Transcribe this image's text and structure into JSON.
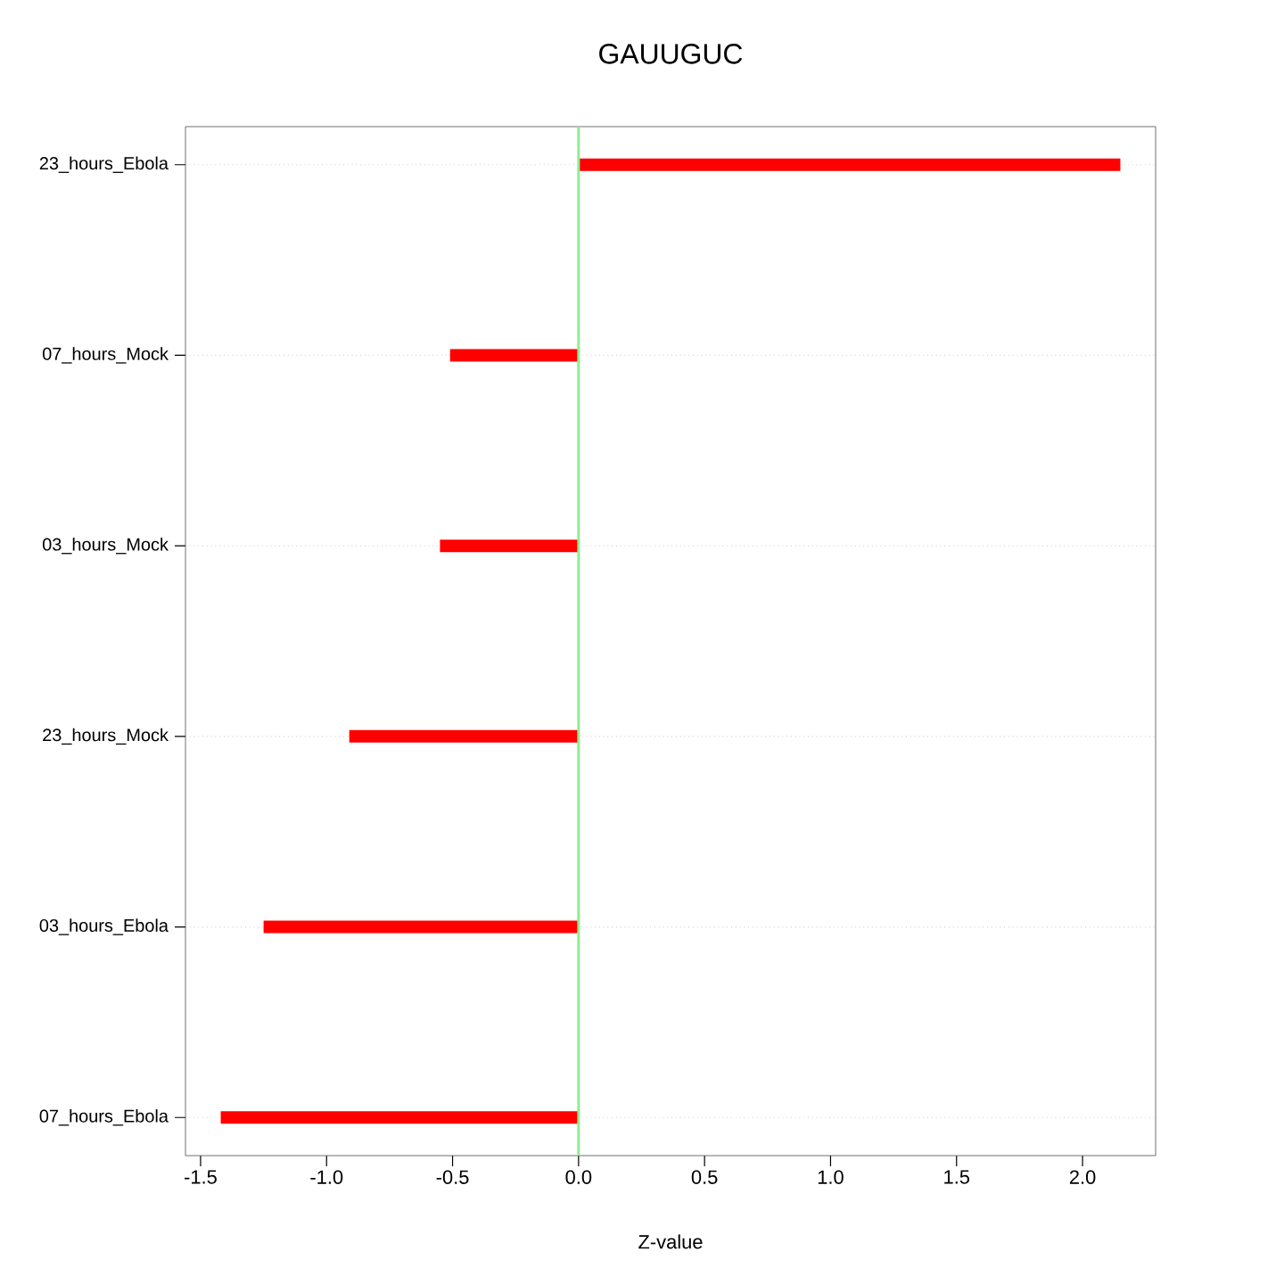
{
  "chart_data": {
    "type": "bar",
    "orientation": "horizontal",
    "title": "GAUUGUC",
    "xlabel": "Z-value",
    "categories": [
      "23_hours_Ebola",
      "07_hours_Mock",
      "03_hours_Mock",
      "23_hours_Mock",
      "03_hours_Ebola",
      "07_hours_Ebola"
    ],
    "values": [
      2.15,
      -0.51,
      -0.55,
      -0.91,
      -1.25,
      -1.42
    ],
    "color": "#ff0000",
    "xlim": [
      -1.56,
      2.29
    ],
    "xticks": [
      -1.5,
      {
        "value": -1,
        "label": "-1.0"
      },
      -0.5,
      {
        "value": 0,
        "label": "0.0"
      },
      0.5,
      {
        "value": 1,
        "label": "1.0"
      },
      1.5,
      {
        "value": 2,
        "label": "2.0"
      }
    ],
    "grid": "y",
    "ref_lines": [
      {
        "axis": "x",
        "value": 0,
        "color": "#90ee90"
      }
    ]
  }
}
